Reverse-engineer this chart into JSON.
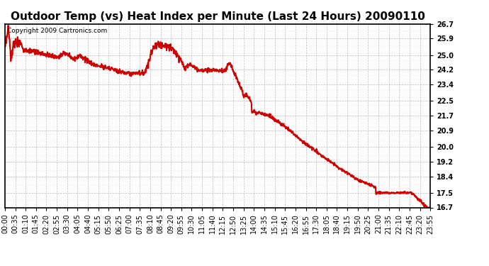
{
  "title": "Outdoor Temp (vs) Heat Index per Minute (Last 24 Hours) 20090110",
  "copyright": "Copyright 2009 Cartronics.com",
  "line_color": "#cc0000",
  "background_color": "#ffffff",
  "grid_color": "#bbbbbb",
  "ylim": [
    16.7,
    26.7
  ],
  "yticks": [
    16.7,
    17.5,
    18.4,
    19.2,
    20.0,
    20.9,
    21.7,
    22.5,
    23.4,
    24.2,
    25.0,
    25.9,
    26.7
  ],
  "xtick_labels": [
    "00:00",
    "00:35",
    "01:10",
    "01:45",
    "02:20",
    "02:55",
    "03:30",
    "04:05",
    "04:40",
    "05:15",
    "05:50",
    "06:25",
    "07:00",
    "07:35",
    "08:10",
    "08:45",
    "09:20",
    "09:55",
    "10:30",
    "11:05",
    "11:40",
    "12:15",
    "12:50",
    "13:25",
    "14:00",
    "14:35",
    "15:10",
    "15:45",
    "16:20",
    "16:55",
    "17:30",
    "18:05",
    "18:40",
    "19:15",
    "19:50",
    "20:25",
    "21:00",
    "21:35",
    "22:10",
    "22:45",
    "23:20",
    "23:55"
  ],
  "title_fontsize": 11,
  "copyright_fontsize": 6.5,
  "tick_fontsize": 7,
  "line_width": 1.5
}
